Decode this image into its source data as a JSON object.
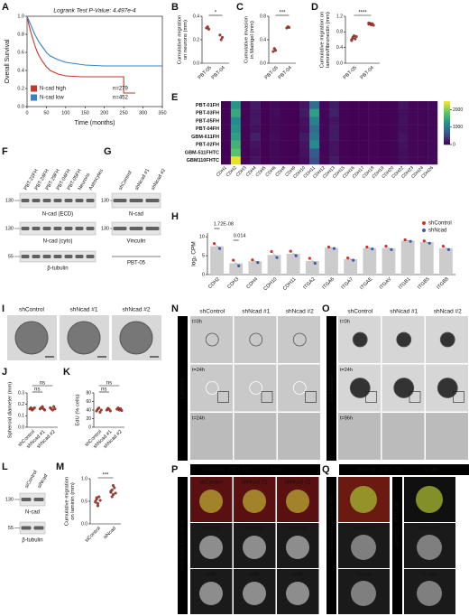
{
  "panels": {
    "A": {
      "letter": "A",
      "annotation": "Logrank Test P-Value: 4.497e-4",
      "ylabel": "Overall Survival",
      "xlabel": "Time (months)",
      "xlim": [
        0,
        350
      ],
      "ylim": [
        0,
        1
      ],
      "xticks": [
        0,
        50,
        100,
        150,
        200,
        250,
        300,
        350
      ],
      "yticks": [
        {
          "value": 0,
          "label": "0.0"
        },
        {
          "value": 0.2,
          "label": "0.2"
        },
        {
          "value": 0.4,
          "label": "0.4"
        },
        {
          "value": 0.6,
          "label": "0.6"
        },
        {
          "value": 0.8,
          "label": "0.8"
        },
        {
          "value": 1,
          "label": "1.0"
        }
      ],
      "series": [
        {
          "name": "N-cad high",
          "n": "n=279",
          "color": "#c0392b",
          "x": [
            0,
            5,
            10,
            15,
            20,
            25,
            30,
            40,
            50,
            60,
            80,
            100,
            140,
            250,
            250,
            280
          ],
          "y": [
            1,
            0.9,
            0.82,
            0.75,
            0.68,
            0.62,
            0.57,
            0.5,
            0.44,
            0.4,
            0.36,
            0.34,
            0.33,
            0.33,
            0.15,
            0.15
          ]
        },
        {
          "name": "N-cad low",
          "n": "n=452",
          "color": "#3b82c4",
          "x": [
            0,
            5,
            10,
            15,
            20,
            25,
            30,
            40,
            50,
            60,
            80,
            100,
            150,
            200,
            250,
            300,
            350
          ],
          "y": [
            1,
            0.95,
            0.9,
            0.85,
            0.8,
            0.76,
            0.72,
            0.66,
            0.6,
            0.56,
            0.52,
            0.49,
            0.46,
            0.45,
            0.45,
            0.45,
            0.45
          ]
        }
      ]
    },
    "B": {
      "letter": "B",
      "ylabel": [
        "Cumulative migration",
        "on neurons (mm)"
      ],
      "sig": [
        "*"
      ],
      "color": "#c0392b",
      "ylim": [
        0,
        0.4
      ],
      "yticks": [
        {
          "value": 0,
          "label": "0.0"
        },
        {
          "value": 0.2,
          "label": "0.2"
        },
        {
          "value": 0.4,
          "label": "0.4"
        }
      ],
      "groups": [
        {
          "name": "PBT-05",
          "values": [
            0.3,
            0.31,
            0.29
          ]
        },
        {
          "name": "PBT-04",
          "values": [
            0.24,
            0.2,
            0.22
          ]
        }
      ]
    },
    "C": {
      "letter": "C",
      "ylabel": [
        "Cumulative invasion",
        "in Matrigel (mm)"
      ],
      "sig": [
        "***"
      ],
      "color": "#c0392b",
      "ylim": [
        0,
        0.8
      ],
      "yticks": [
        {
          "value": 0,
          "label": "0.0"
        },
        {
          "value": 0.4,
          "label": "0.4"
        },
        {
          "value": 0.8,
          "label": "0.8"
        }
      ],
      "groups": [
        {
          "name": "PBT-05",
          "values": [
            0.2,
            0.25,
            0.22
          ]
        },
        {
          "name": "PBT-04",
          "values": [
            0.6,
            0.62,
            0.61
          ]
        }
      ]
    },
    "D": {
      "letter": "D",
      "ylabel": [
        "Cumulative migration on",
        "laminin/fibronectin (mm)"
      ],
      "sig": [
        "****"
      ],
      "color": "#c0392b",
      "ylim": [
        0,
        1.2
      ],
      "yticks": [
        {
          "value": 0,
          "label": "0.0"
        },
        {
          "value": 0.4,
          "label": "0.4"
        },
        {
          "value": 0.8,
          "label": "0.8"
        },
        {
          "value": 1.2,
          "label": "1.2"
        }
      ],
      "groups": [
        {
          "name": "PBT-05",
          "values": [
            0.6,
            0.65,
            0.7,
            0.62,
            0.68,
            0.58,
            0.66
          ]
        },
        {
          "name": "PBT-04",
          "values": [
            1.0,
            1.02,
            0.98,
            1.01,
            0.97,
            1.03
          ]
        }
      ]
    },
    "E": {
      "letter": "E",
      "rows": [
        "PBT-01FH",
        "PBT-03FH",
        "PBT-05FH",
        "PBT-04FH",
        "GBM-611FH",
        "PBT-02FH",
        "GBM-511FHTC",
        "GBM110FHTC"
      ],
      "columns": [
        "CDH1",
        "CDH2",
        "CDH3",
        "CDH4",
        "CDH5",
        "CDH6",
        "CDH8",
        "CDH9",
        "CDH10",
        "CDH11",
        "CDH12",
        "CDH13",
        "CDH15",
        "CDH16",
        "CDH17",
        "CDH18",
        "CDH19",
        "CDH20",
        "CDH22",
        "CDH23",
        "CDH24",
        "CDH26"
      ],
      "clim": [
        0,
        2500
      ],
      "cticks": [
        0,
        1000,
        2000
      ],
      "values": [
        [
          20,
          1300,
          30,
          200,
          10,
          60,
          20,
          10,
          150,
          900,
          40,
          200,
          20,
          10,
          10,
          30,
          10,
          20,
          150,
          40,
          30,
          60
        ],
        [
          20,
          1500,
          30,
          150,
          10,
          80,
          20,
          10,
          200,
          1400,
          40,
          250,
          20,
          10,
          10,
          30,
          10,
          20,
          100,
          40,
          30,
          60
        ],
        [
          20,
          1200,
          30,
          180,
          10,
          60,
          20,
          10,
          120,
          1100,
          40,
          150,
          20,
          10,
          10,
          30,
          10,
          20,
          120,
          40,
          30,
          60
        ],
        [
          20,
          1300,
          30,
          120,
          10,
          60,
          20,
          10,
          100,
          900,
          40,
          200,
          20,
          10,
          10,
          30,
          10,
          20,
          100,
          40,
          30,
          60
        ],
        [
          20,
          1400,
          30,
          250,
          10,
          80,
          20,
          10,
          200,
          1000,
          40,
          200,
          20,
          10,
          10,
          30,
          10,
          20,
          150,
          40,
          30,
          60
        ],
        [
          20,
          1600,
          30,
          150,
          10,
          60,
          20,
          10,
          150,
          1200,
          40,
          150,
          20,
          10,
          10,
          30,
          10,
          20,
          120,
          40,
          30,
          60
        ],
        [
          20,
          1800,
          30,
          100,
          10,
          60,
          20,
          10,
          120,
          700,
          40,
          150,
          20,
          10,
          10,
          30,
          10,
          20,
          100,
          40,
          30,
          60
        ],
        [
          20,
          2400,
          30,
          150,
          10,
          60,
          20,
          10,
          100,
          600,
          40,
          200,
          20,
          10,
          10,
          30,
          10,
          20,
          100,
          40,
          30,
          60
        ]
      ]
    },
    "F": {
      "letter": "F",
      "lanes": [
        "PBT-22FH",
        "PBT-24FH",
        "PBT-29FH",
        "PBT-04FH",
        "PBT-05FH",
        "Neurons",
        "Astrocytes"
      ],
      "blots": [
        {
          "mw": "130",
          "label": "N-cad (ECD)"
        },
        {
          "mw": "130",
          "label": "N-cad (cyto)"
        },
        {
          "mw": "55",
          "label": "β-tubulin"
        }
      ]
    },
    "G": {
      "letter": "G",
      "lanes": [
        "shControl",
        "shNcad #1",
        "shNcad #2"
      ],
      "blots": [
        {
          "mw": "130",
          "label": "N-cad"
        },
        {
          "mw": "130",
          "label": "Vinculin"
        }
      ],
      "footer": "PBT-05"
    },
    "H": {
      "letter": "H",
      "ylabel": "log₂ CPM",
      "ylim": [
        0,
        11
      ],
      "yticks": [
        0,
        5,
        10
      ],
      "annotations": [
        "1.72E-08",
        "0.014"
      ],
      "categories": [
        "CDH2",
        "CDH3",
        "CDH4",
        "CDH10",
        "CDH11",
        "ITGA2",
        "ITGA6",
        "ITGA7",
        "ITGAE",
        "ITGAV",
        "ITGB1",
        "ITGB5",
        "ITGB8"
      ],
      "bars": [
        7.5,
        3,
        3.5,
        5.2,
        5.5,
        3.6,
        7.1,
        4.1,
        7,
        7,
        9,
        8.6,
        7
      ],
      "bar_color": "#cccccc",
      "series": [
        {
          "name": "shControl",
          "color": "#d7302a",
          "values": [
            8.2,
            3.8,
            3.9,
            6.1,
            6.2,
            4.3,
            7.3,
            4.4,
            7.3,
            7.5,
            9.2,
            8.9,
            7.5
          ]
        },
        {
          "name": "shNcad",
          "color": "#3b5bb5",
          "values": [
            6.9,
            2.3,
            3.2,
            4.5,
            5,
            3,
            6.9,
            3.8,
            6.8,
            6.6,
            8.8,
            8.3,
            6.6
          ]
        }
      ]
    },
    "I": {
      "letter": "I",
      "columns": [
        "shControl",
        "shNcad #1",
        "shNcad #2"
      ]
    },
    "J": {
      "letter": "J",
      "ylabel": [
        "Spheroid diameter (mm)"
      ],
      "sig": [
        "ns",
        "ns"
      ],
      "color": "#c0392b",
      "ylim": [
        0,
        0.3
      ],
      "yticks": [
        {
          "value": 0,
          "label": "0.0"
        },
        {
          "value": 0.1,
          "label": "0.1"
        },
        {
          "value": 0.2,
          "label": "0.2"
        },
        {
          "value": 0.3,
          "label": "0.3"
        }
      ],
      "groups": [
        {
          "name": "shControl",
          "values": [
            0.16,
            0.17,
            0.15,
            0.16,
            0.17
          ]
        },
        {
          "name": "shNcad #1",
          "values": [
            0.16,
            0.17,
            0.18,
            0.16,
            0.15
          ]
        },
        {
          "name": "shNcad #2",
          "values": [
            0.17,
            0.16,
            0.15,
            0.18,
            0.16
          ]
        }
      ]
    },
    "K": {
      "letter": "K",
      "ylabel": [
        "EdU (% cells)"
      ],
      "sig": [
        "ns",
        "ns"
      ],
      "color": "#c0392b",
      "ylim": [
        0,
        80
      ],
      "yticks": [
        0,
        20,
        40,
        60,
        80
      ],
      "groups": [
        {
          "name": "shControl",
          "values": [
            38,
            42,
            45,
            35,
            40
          ]
        },
        {
          "name": "shNcad #1",
          "values": [
            40,
            44,
            42,
            38
          ]
        },
        {
          "name": "shNcad #2",
          "values": [
            42,
            45,
            40,
            43,
            39
          ]
        }
      ]
    },
    "L": {
      "letter": "L",
      "lanes": [
        "siControl",
        "siNcad"
      ],
      "blots": [
        {
          "mw": "130",
          "label": "N-cad"
        },
        {
          "mw": "55",
          "label": "β-tubulin"
        }
      ]
    },
    "M": {
      "letter": "M",
      "ylabel": [
        "Cumulative migration",
        "on laminin (mm)"
      ],
      "sig": [
        "***"
      ],
      "color": "#c0392b",
      "ylim": [
        0,
        1
      ],
      "yticks": [
        {
          "value": 0,
          "label": "0.0"
        },
        {
          "value": 0.5,
          "label": "0.5"
        },
        {
          "value": 1,
          "label": "1.0"
        }
      ],
      "groups": [
        {
          "name": "siControl",
          "values": [
            0.5,
            0.55,
            0.45,
            0.6,
            0.52,
            0.48,
            0.58,
            0.4
          ]
        },
        {
          "name": "siNcad",
          "values": [
            0.7,
            0.75,
            0.65,
            0.8,
            0.68,
            0.72,
            0.6,
            0.85
          ]
        }
      ]
    },
    "N": {
      "letter": "N",
      "side": "Laminin",
      "columns": [
        "shControl",
        "shNcad #1",
        "shNcad #2"
      ],
      "rows": [
        "t=0h",
        "t=24h",
        "t=24h"
      ]
    },
    "O": {
      "letter": "O",
      "side": "3D Matrigel",
      "columns": [
        "shControl",
        "shNcad #1",
        "shNcad #2"
      ],
      "rows": [
        "t=0h",
        "t=24h",
        "t=96h"
      ]
    },
    "P": {
      "letter": "P",
      "header": [
        "Vimentin (PBT-05)",
        "Actin"
      ],
      "side": "Astrocyte Coculture",
      "labels": [
        [
          "shControl",
          "shNcad #1",
          "shNcad #2"
        ],
        [
          "Vimentin",
          "Vimentin",
          "Vimentin"
        ],
        [
          "Actin",
          "Actin",
          "Actin"
        ]
      ]
    },
    "Q": {
      "letter": "Q",
      "header": [
        "Vimentin (PBT-05)",
        "N-cad"
      ],
      "sides": [
        "Astrocyte Coculture 48h",
        "Astrocyte ECM 24h"
      ],
      "labels": [
        [
          "Vimentin",
          "N-cad"
        ],
        [
          "Vimentin",
          "N-cad"
        ]
      ]
    }
  }
}
